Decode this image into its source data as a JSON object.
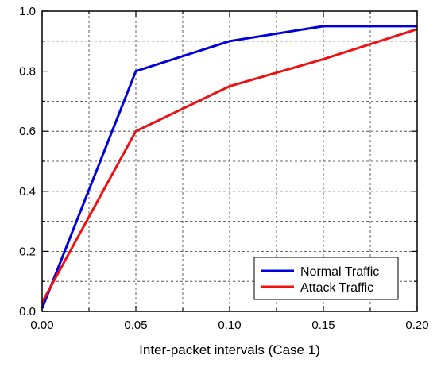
{
  "chart_data": {
    "type": "line",
    "xlabel": "Inter-packet intervals (Case 1)",
    "ylabel": "",
    "xlim": [
      0,
      0.2
    ],
    "ylim": [
      0,
      1.0
    ],
    "x_ticks": [
      "0.00",
      "0.05",
      "0.10",
      "0.15",
      "0.20"
    ],
    "y_ticks": [
      "0.0",
      "0.2",
      "0.4",
      "0.6",
      "0.8",
      "1.0"
    ],
    "grid": true,
    "legend_position": "bottom-right",
    "series": [
      {
        "name": "Normal Traffic",
        "color": "#0000dd",
        "x": [
          0,
          0.05,
          0.1,
          0.15,
          0.2
        ],
        "y": [
          0.01,
          0.8,
          0.9,
          0.95,
          0.95
        ]
      },
      {
        "name": "Attack Traffic",
        "color": "#ee1111",
        "x": [
          0,
          0.05,
          0.1,
          0.15,
          0.2
        ],
        "y": [
          0.03,
          0.6,
          0.75,
          0.84,
          0.94
        ]
      }
    ]
  }
}
